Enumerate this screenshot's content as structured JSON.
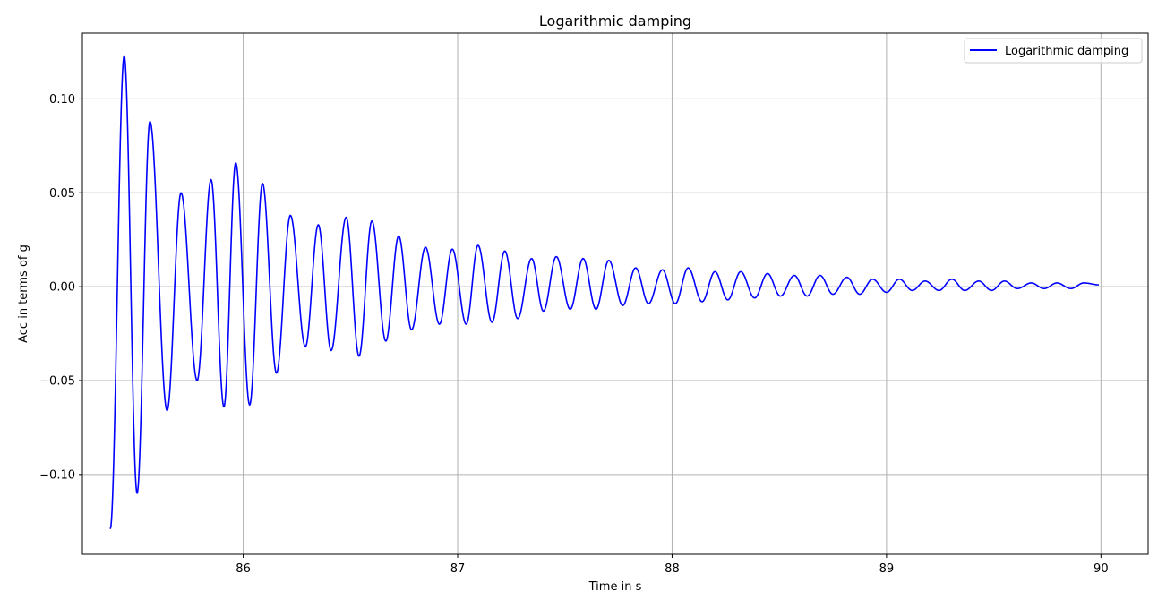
{
  "chart_data": {
    "type": "line",
    "title": "Logarithmic damping",
    "xlabel": "Time in s",
    "ylabel": "Acc in terms of g",
    "xlim": [
      85.25,
      90.22
    ],
    "ylim": [
      -0.1425,
      0.135
    ],
    "x_ticks": [
      86,
      87,
      88,
      89,
      90
    ],
    "y_ticks": [
      -0.1,
      -0.05,
      0.0,
      0.05,
      0.1
    ],
    "x_tick_labels": [
      "86",
      "87",
      "88",
      "89",
      "90"
    ],
    "y_tick_labels": [
      "−0.10",
      "−0.05",
      "0.00",
      "0.05",
      "0.10"
    ],
    "grid": true,
    "legend_position": "top-right",
    "series": [
      {
        "name": "Logarithmic damping",
        "color": "#0000ff",
        "x": [
          85.38,
          85.445,
          85.505,
          85.565,
          85.645,
          85.71,
          85.785,
          85.85,
          85.91,
          85.965,
          86.03,
          86.09,
          86.155,
          86.22,
          86.29,
          86.35,
          86.41,
          86.48,
          86.54,
          86.6,
          86.665,
          86.725,
          86.785,
          86.85,
          86.915,
          86.975,
          87.04,
          87.095,
          87.16,
          87.22,
          87.28,
          87.345,
          87.4,
          87.46,
          87.525,
          87.585,
          87.645,
          87.705,
          87.77,
          87.83,
          87.89,
          87.955,
          88.015,
          88.075,
          88.14,
          88.2,
          88.26,
          88.32,
          88.385,
          88.445,
          88.505,
          88.57,
          88.63,
          88.69,
          88.75,
          88.815,
          88.875,
          88.935,
          89.0,
          89.06,
          89.12,
          89.18,
          89.245,
          89.305,
          89.365,
          89.43,
          89.49,
          89.55,
          89.61,
          89.675,
          89.735,
          89.795,
          89.86,
          89.92,
          89.99
        ],
        "y": [
          -0.129,
          0.123,
          -0.11,
          0.088,
          -0.066,
          0.05,
          -0.05,
          0.057,
          -0.064,
          0.066,
          -0.063,
          0.055,
          -0.046,
          0.038,
          -0.032,
          0.033,
          -0.034,
          0.037,
          -0.037,
          0.035,
          -0.029,
          0.027,
          -0.023,
          0.021,
          -0.02,
          0.02,
          -0.02,
          0.022,
          -0.019,
          0.019,
          -0.017,
          0.015,
          -0.013,
          0.016,
          -0.012,
          0.015,
          -0.012,
          0.014,
          -0.01,
          0.01,
          -0.009,
          0.009,
          -0.009,
          0.01,
          -0.008,
          0.008,
          -0.007,
          0.008,
          -0.006,
          0.007,
          -0.005,
          0.006,
          -0.005,
          0.006,
          -0.004,
          0.005,
          -0.004,
          0.004,
          -0.003,
          0.004,
          -0.002,
          0.003,
          -0.002,
          0.004,
          -0.002,
          0.003,
          -0.002,
          0.003,
          -0.001,
          0.002,
          -0.001,
          0.002,
          -0.001,
          0.002,
          0.001
        ]
      }
    ]
  }
}
